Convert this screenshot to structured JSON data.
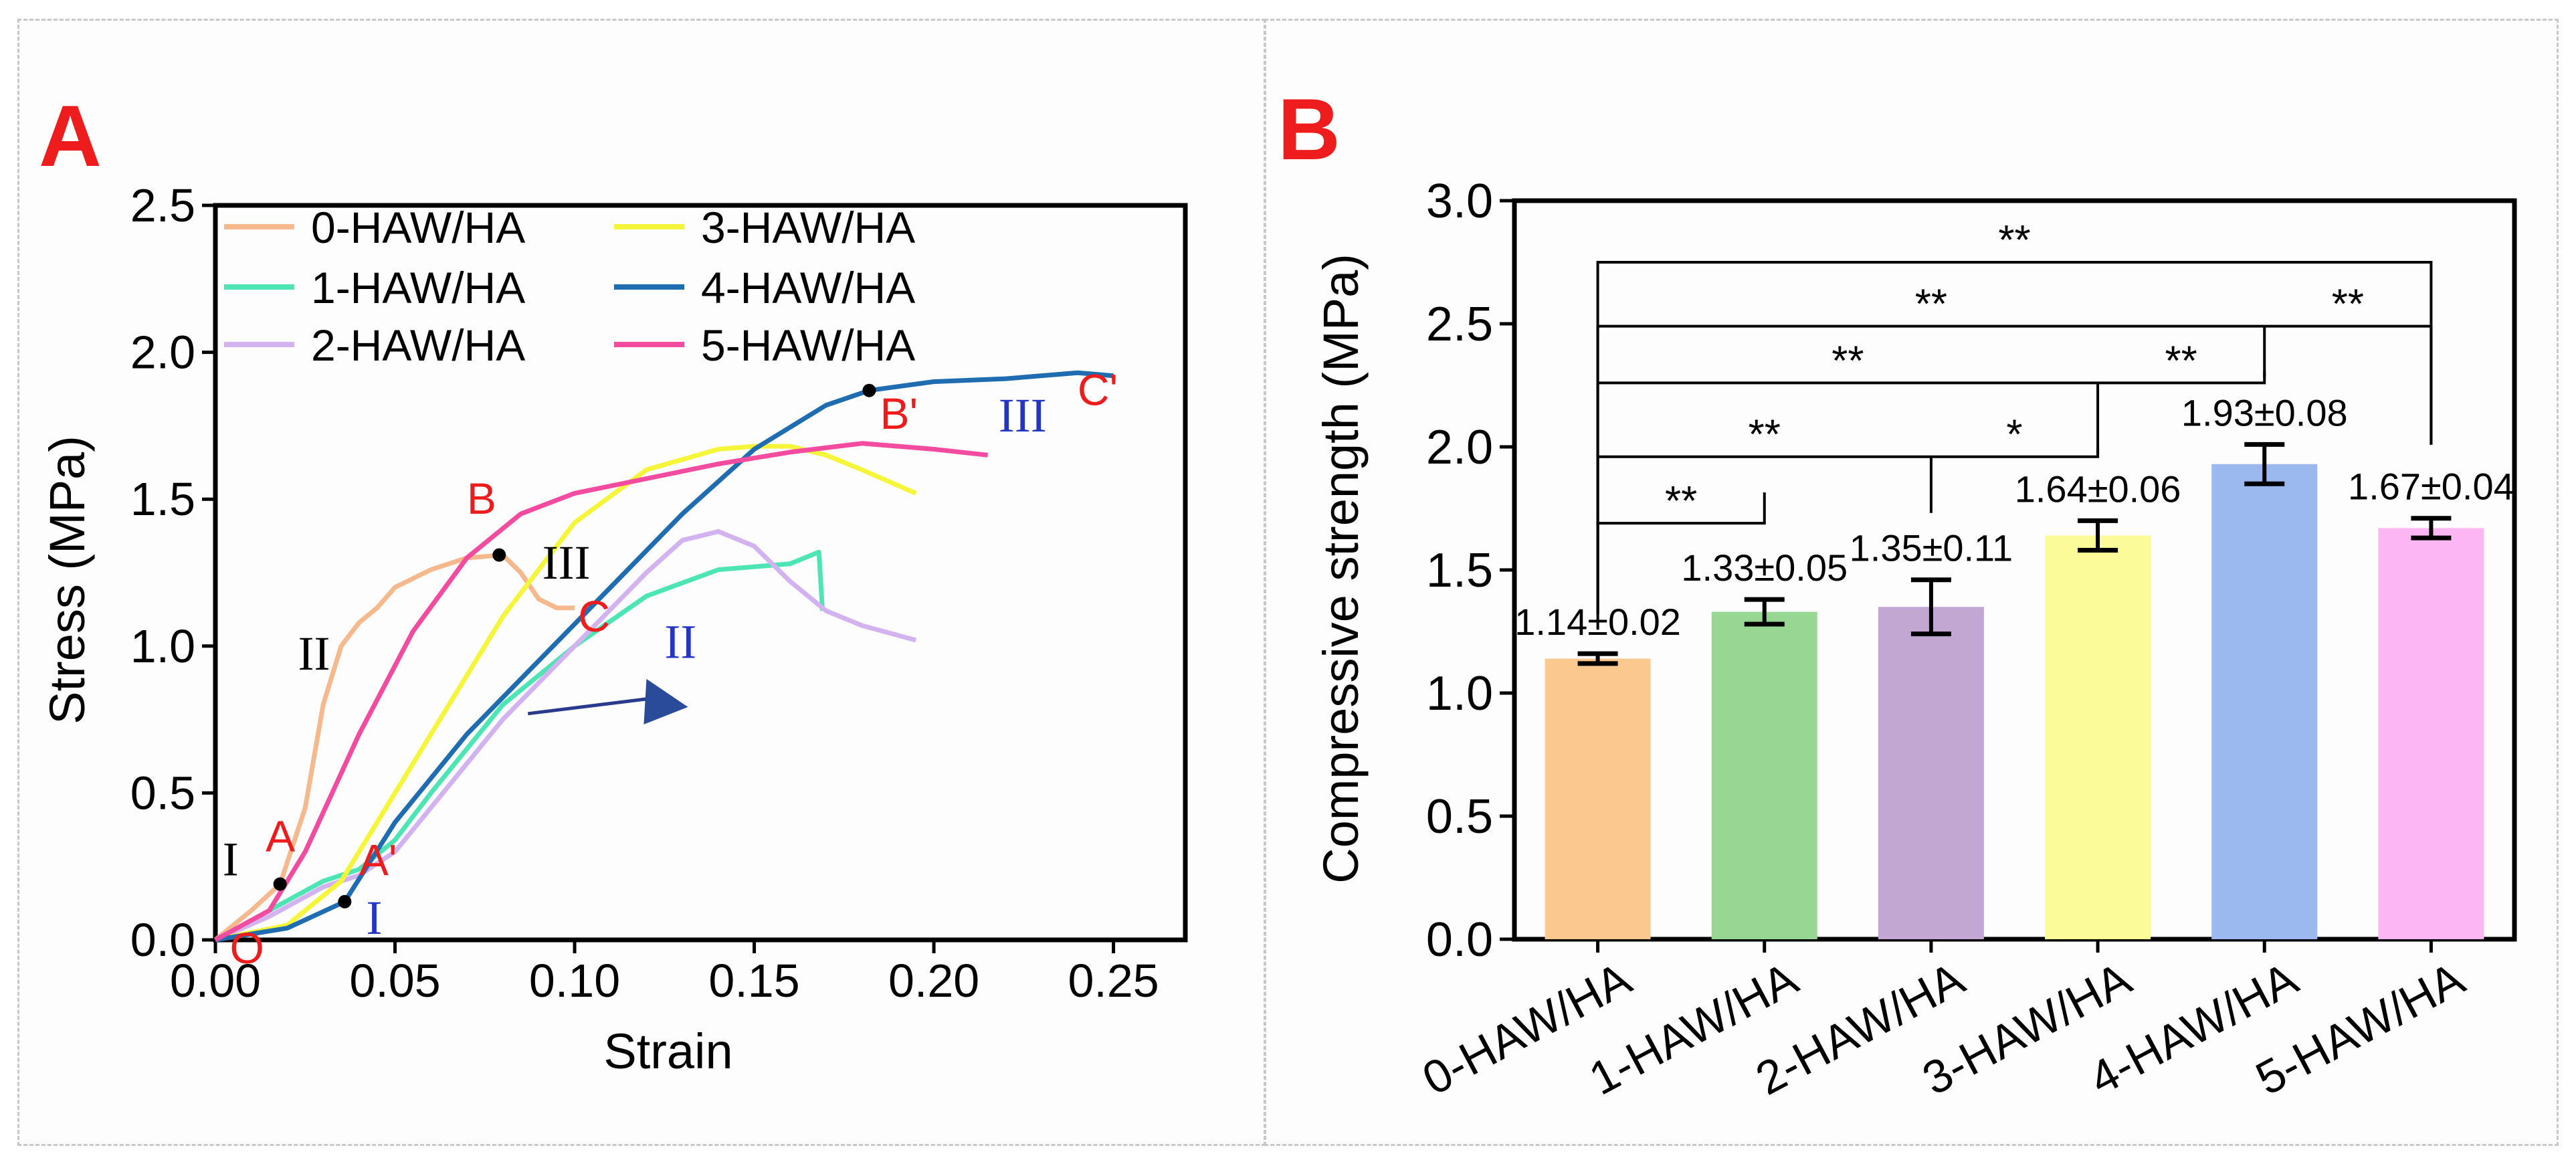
{
  "colors": {
    "0-HAW/HA": "#f6b98e",
    "1-HAW/HA": "#4ee5b4",
    "2-HAW/HA": "#d3b2f0",
    "3-HAW/HA": "#f5f53a",
    "4-HAW/HA": "#1f6cb0",
    "5-HAW/HA": "#f24ba0",
    "annotation_red": "#ee1c1c",
    "annotation_blue": "#2335c4",
    "annotation_black": "#000000"
  },
  "chart_data": [
    {
      "panel_label": "A",
      "type": "line",
      "xlabel": "Strain",
      "ylabel": "Stress (MPa)",
      "xlim": [
        0,
        0.27
      ],
      "ylim": [
        0,
        2.5
      ],
      "xticks": [
        "0.00",
        "0.05",
        "0.10",
        "0.15",
        "0.20",
        "0.25"
      ],
      "yticks": [
        "0.0",
        "0.5",
        "1.0",
        "1.5",
        "2.0",
        "2.5"
      ],
      "legend": "top-left, two columns",
      "grid": false,
      "series": [
        {
          "name": "0-HAW/HA",
          "x": [
            0,
            0.01,
            0.018,
            0.025,
            0.03,
            0.035,
            0.04,
            0.045,
            0.05,
            0.06,
            0.07,
            0.08,
            0.085,
            0.09,
            0.095,
            0.1
          ],
          "y": [
            0,
            0.1,
            0.19,
            0.45,
            0.8,
            1.0,
            1.08,
            1.13,
            1.2,
            1.26,
            1.3,
            1.31,
            1.25,
            1.16,
            1.13,
            1.13
          ]
        },
        {
          "name": "1-HAW/HA",
          "x": [
            0,
            0.015,
            0.03,
            0.04,
            0.05,
            0.06,
            0.08,
            0.1,
            0.12,
            0.14,
            0.16,
            0.168,
            0.169
          ],
          "y": [
            0,
            0.1,
            0.2,
            0.24,
            0.34,
            0.5,
            0.8,
            1.0,
            1.17,
            1.26,
            1.28,
            1.32,
            1.12
          ]
        },
        {
          "name": "2-HAW/HA",
          "x": [
            0,
            0.015,
            0.03,
            0.04,
            0.05,
            0.06,
            0.08,
            0.1,
            0.12,
            0.13,
            0.14,
            0.15,
            0.16,
            0.17,
            0.18,
            0.195
          ],
          "y": [
            0,
            0.08,
            0.18,
            0.22,
            0.3,
            0.45,
            0.75,
            1.0,
            1.25,
            1.36,
            1.39,
            1.34,
            1.22,
            1.12,
            1.07,
            1.02
          ]
        },
        {
          "name": "3-HAW/HA",
          "x": [
            0,
            0.02,
            0.035,
            0.045,
            0.06,
            0.08,
            0.1,
            0.12,
            0.14,
            0.15,
            0.16,
            0.17,
            0.18,
            0.195
          ],
          "y": [
            0,
            0.05,
            0.2,
            0.4,
            0.7,
            1.1,
            1.42,
            1.6,
            1.67,
            1.68,
            1.68,
            1.65,
            1.6,
            1.52
          ]
        },
        {
          "name": "4-HAW/HA",
          "x": [
            0,
            0.02,
            0.036,
            0.05,
            0.07,
            0.09,
            0.11,
            0.13,
            0.15,
            0.17,
            0.182,
            0.2,
            0.22,
            0.24,
            0.25
          ],
          "y": [
            0,
            0.04,
            0.13,
            0.4,
            0.7,
            0.95,
            1.2,
            1.45,
            1.67,
            1.82,
            1.87,
            1.9,
            1.91,
            1.93,
            1.92
          ]
        },
        {
          "name": "5-HAW/HA",
          "x": [
            0,
            0.015,
            0.025,
            0.04,
            0.055,
            0.07,
            0.085,
            0.1,
            0.12,
            0.14,
            0.16,
            0.18,
            0.2,
            0.215
          ],
          "y": [
            0,
            0.1,
            0.3,
            0.7,
            1.05,
            1.3,
            1.45,
            1.52,
            1.57,
            1.62,
            1.66,
            1.69,
            1.67,
            1.65
          ]
        }
      ],
      "markers": [
        {
          "x": 0.018,
          "y": 0.19
        },
        {
          "x": 0.036,
          "y": 0.13
        },
        {
          "x": 0.079,
          "y": 1.31
        },
        {
          "x": 0.182,
          "y": 1.87
        }
      ],
      "annotations": [
        {
          "text": "O",
          "x": 0.004,
          "y": -0.08,
          "style": "red"
        },
        {
          "text": "A",
          "x": 0.014,
          "y": 0.3,
          "style": "red"
        },
        {
          "text": "A'",
          "x": 0.04,
          "y": 0.22,
          "style": "red"
        },
        {
          "text": "B",
          "x": 0.07,
          "y": 1.45,
          "style": "red"
        },
        {
          "text": "C",
          "x": 0.101,
          "y": 1.05,
          "style": "red"
        },
        {
          "text": "B'",
          "x": 0.185,
          "y": 1.74,
          "style": "red"
        },
        {
          "text": "C'",
          "x": 0.24,
          "y": 1.82,
          "style": "red"
        },
        {
          "text": "I",
          "x": 0.002,
          "y": 0.22,
          "style": "black"
        },
        {
          "text": "II",
          "x": 0.023,
          "y": 0.92,
          "style": "black"
        },
        {
          "text": "III",
          "x": 0.091,
          "y": 1.23,
          "style": "black"
        },
        {
          "text": "I",
          "x": 0.042,
          "y": 0.02,
          "style": "blue"
        },
        {
          "text": "II",
          "x": 0.125,
          "y": 0.96,
          "style": "blue"
        },
        {
          "text": "III",
          "x": 0.218,
          "y": 1.73,
          "style": "blue"
        }
      ]
    },
    {
      "panel_label": "B",
      "type": "bar",
      "xlabel": "",
      "ylabel": "Compressive strength (MPa)",
      "ylim": [
        0,
        3.0
      ],
      "yticks": [
        "0.0",
        "0.5",
        "1.0",
        "1.5",
        "2.0",
        "2.5",
        "3.0"
      ],
      "categories": [
        "0-HAW/HA",
        "1-HAW/HA",
        "2-HAW/HA",
        "3-HAW/HA",
        "4-HAW/HA",
        "5-HAW/HA"
      ],
      "values": [
        1.14,
        1.33,
        1.35,
        1.64,
        1.93,
        1.67
      ],
      "errors": [
        0.02,
        0.05,
        0.11,
        0.06,
        0.08,
        0.04
      ],
      "value_labels": [
        "1.14±0.02",
        "1.33±0.05",
        "1.35±0.11",
        "1.64±0.06",
        "1.93±0.08",
        "1.67±0.04"
      ],
      "bar_colors": [
        "#fbc98f",
        "#98d694",
        "#c2a7d2",
        "#fbfb9a",
        "#9cb9ef",
        "#fcb6f4"
      ],
      "significance": [
        {
          "from": 0,
          "to": 1,
          "label": "**",
          "y": 1.69
        },
        {
          "from": 0,
          "to": 3,
          "label": "**",
          "y": 1.96,
          "mid": 2,
          "mid_label": "*"
        },
        {
          "from": 0,
          "to": 4,
          "label": "**",
          "y": 2.26,
          "mid": 3,
          "mid_label": "**"
        },
        {
          "from": 0,
          "to": 5,
          "label": "**",
          "y": 2.49,
          "mid": 4,
          "mid_label": "**"
        },
        {
          "from": 0,
          "to": 5,
          "label": "**",
          "y": 2.75
        }
      ]
    }
  ]
}
